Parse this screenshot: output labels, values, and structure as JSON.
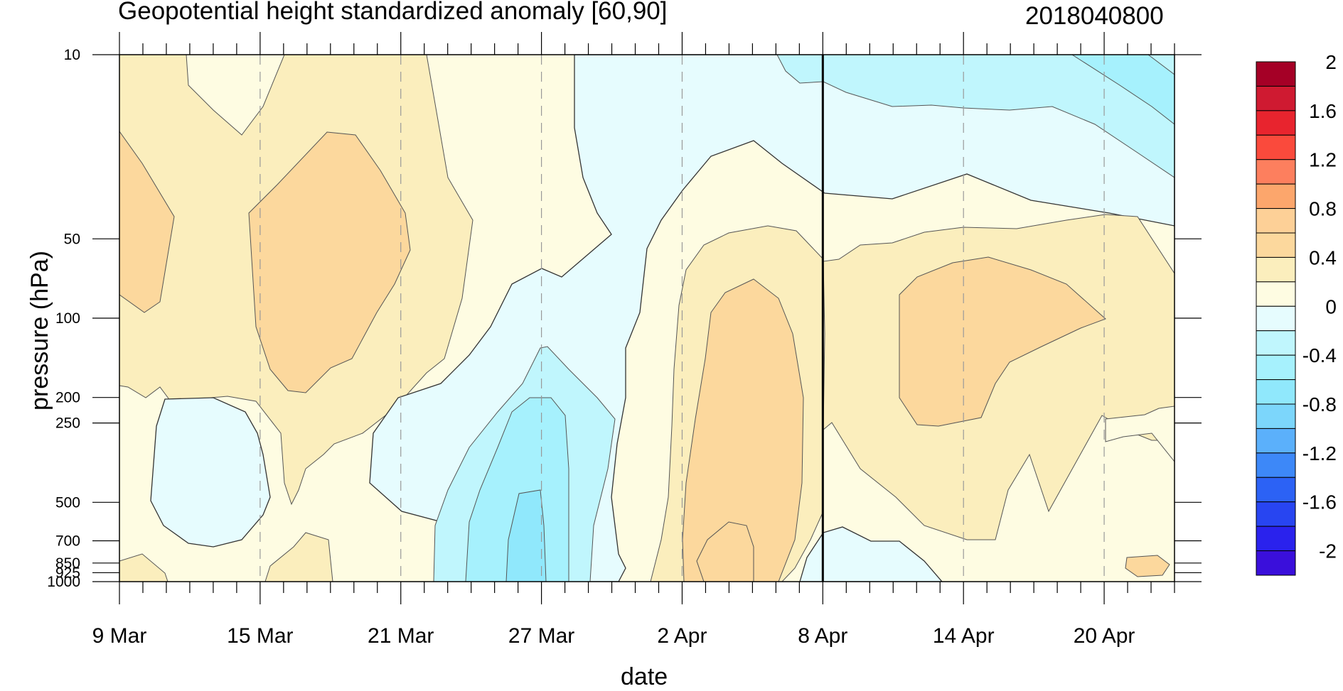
{
  "chart_data": {
    "type": "heatmap",
    "title": "Geopotential height standardized anomaly [60,90]",
    "run_label": "2018040800",
    "xlabel": "date",
    "ylabel": "pressure (hPa)",
    "x_ticks": [
      "9 Mar",
      "15 Mar",
      "21 Mar",
      "27 Mar",
      "2 Apr",
      "8 Apr",
      "14 Apr",
      "20 Apr"
    ],
    "x_tick_days": [
      0,
      6,
      12,
      18,
      24,
      30,
      36,
      42
    ],
    "x_range_days": [
      0,
      45
    ],
    "y_scale": "log",
    "y_ticks": [
      "10",
      "50",
      "100",
      "200",
      "250",
      "500",
      "700",
      "850",
      "925",
      "1000"
    ],
    "y_tick_values": [
      10,
      50,
      100,
      200,
      250,
      500,
      700,
      850,
      925,
      1000
    ],
    "y_range": [
      10,
      1000
    ],
    "y_inverted": true,
    "vertical_marker_day": 30,
    "colorbar": {
      "labels": [
        "2",
        "1.6",
        "1.2",
        "0.8",
        "0.4",
        "0",
        "-0.4",
        "-0.8",
        "-1.2",
        "-1.6",
        "-2"
      ],
      "colors": [
        "#a50026",
        "#cf1a31",
        "#e8242e",
        "#fa4a3c",
        "#fd7f5e",
        "#fca66c",
        "#fdd097",
        "#fcd89d",
        "#fbeebd",
        "#fefce2",
        "#e6fcfe",
        "#c0f6fd",
        "#a6f1fd",
        "#90e8fc",
        "#7cd6fb",
        "#5bb0fb",
        "#3d88f8",
        "#2c62f5",
        "#2845f1",
        "#2a22ed",
        "#3a0fdb"
      ]
    },
    "grid_days": [
      0,
      6,
      12,
      18,
      24,
      30,
      36,
      42
    ],
    "levels": [
      {
        "value": 0.2,
        "name": "positive-weak",
        "days": [
          0,
          3,
          6,
          9,
          12,
          15,
          18,
          21,
          24,
          27,
          30,
          33,
          36,
          39,
          42,
          45
        ]
      },
      {
        "value": -0.2,
        "name": "negative-weak"
      }
    ]
  }
}
